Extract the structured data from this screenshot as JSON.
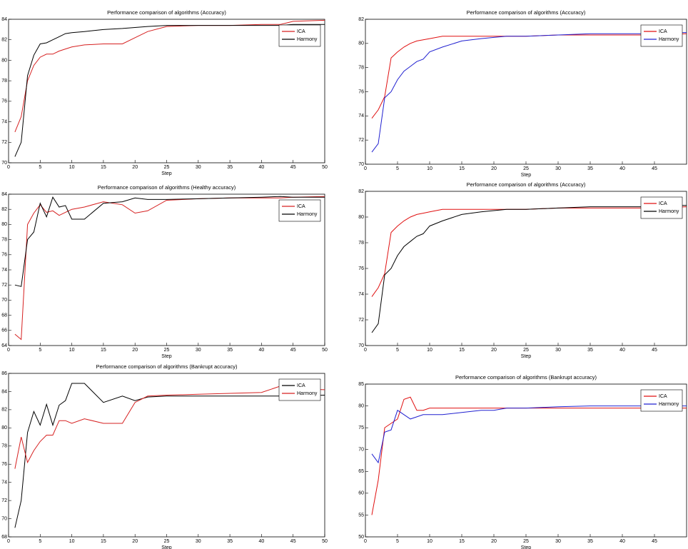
{
  "chart_data": [
    {
      "type": "line",
      "title": "Performance comparison of algorithms (Accuracy)",
      "xlabel": "Step",
      "x": [
        1,
        2,
        3,
        4,
        5,
        6,
        7,
        8,
        9,
        10,
        12,
        15,
        18,
        20,
        22,
        25,
        30,
        35,
        40,
        43,
        45,
        50
      ],
      "series": [
        {
          "name": "ICA",
          "color": "#d62020",
          "values": [
            73,
            74.5,
            78,
            79.5,
            80.3,
            80.6,
            80.6,
            80.9,
            81.1,
            81.3,
            81.5,
            81.6,
            81.6,
            82.2,
            82.8,
            83.3,
            83.4,
            83.4,
            83.5,
            83.5,
            83.8,
            83.9
          ]
        },
        {
          "name": "Harmony",
          "color": "#000000",
          "values": [
            70.6,
            72,
            78.5,
            80.5,
            81.6,
            81.7,
            82,
            82.3,
            82.6,
            82.7,
            82.8,
            83,
            83.1,
            83.2,
            83.3,
            83.4,
            83.4,
            83.4,
            83.4,
            83.4,
            83.5,
            83.5
          ]
        }
      ],
      "xlim": [
        0,
        50
      ],
      "xticks": [
        0,
        5,
        10,
        15,
        20,
        25,
        30,
        35,
        40,
        45,
        50
      ],
      "ylim": [
        70,
        84
      ],
      "yticks": [
        70,
        72,
        74,
        76,
        78,
        80,
        82,
        84
      ],
      "legend": "upper right",
      "grid": false
    },
    {
      "type": "line",
      "title": "Performance comparison of algorithms (Accuracy)",
      "xlabel": "Step",
      "x": [
        1,
        2,
        3,
        4,
        5,
        6,
        7,
        8,
        9,
        10,
        12,
        15,
        18,
        20,
        22,
        25,
        30,
        35,
        40,
        43,
        45,
        50
      ],
      "series": [
        {
          "name": "ICA",
          "color": "#e01010",
          "values": [
            73.8,
            74.5,
            75.6,
            78.8,
            79.3,
            79.7,
            80,
            80.2,
            80.3,
            80.4,
            80.6,
            80.6,
            80.6,
            80.6,
            80.6,
            80.6,
            80.7,
            80.7,
            80.7,
            80.7,
            80.7,
            80.8
          ]
        },
        {
          "name": "Harmony",
          "color": "#2020d0",
          "values": [
            71,
            71.7,
            75.5,
            76,
            77,
            77.7,
            78.1,
            78.5,
            78.7,
            79.3,
            79.7,
            80.2,
            80.4,
            80.5,
            80.6,
            80.6,
            80.7,
            80.8,
            80.8,
            80.8,
            80.9,
            80.9
          ]
        }
      ],
      "xlim": [
        0,
        50
      ],
      "xticks": [
        0,
        5,
        10,
        15,
        20,
        25,
        30,
        35,
        40,
        45
      ],
      "ylim": [
        70,
        82
      ],
      "yticks": [
        70,
        72,
        74,
        76,
        78,
        80,
        82
      ],
      "legend": "upper right",
      "grid": false
    },
    {
      "type": "line",
      "title": "Performance comparison of algorithms (Healthy accuracy)",
      "xlabel": "Step",
      "x": [
        1,
        2,
        3,
        4,
        5,
        6,
        7,
        8,
        9,
        10,
        12,
        15,
        18,
        20,
        22,
        25,
        30,
        35,
        40,
        43,
        45,
        50
      ],
      "series": [
        {
          "name": "ICA",
          "color": "#d62020",
          "values": [
            65.5,
            64.8,
            80,
            81.5,
            82.6,
            81.6,
            81.8,
            81.2,
            81.6,
            82,
            82.3,
            83,
            82.6,
            81.5,
            81.8,
            83.2,
            83.4,
            83.5,
            83.5,
            83.5,
            83.6,
            83.7
          ]
        },
        {
          "name": "Harmony",
          "color": "#000000",
          "values": [
            72,
            71.8,
            78,
            79,
            82.8,
            81,
            83.6,
            82.3,
            82.5,
            80.7,
            80.7,
            82.8,
            83,
            83.5,
            83.3,
            83.3,
            83.4,
            83.5,
            83.6,
            83.7,
            83.6,
            83.6
          ]
        }
      ],
      "xlim": [
        0,
        50
      ],
      "xticks": [
        0,
        5,
        10,
        15,
        20,
        25,
        30,
        35,
        40,
        45,
        50
      ],
      "ylim": [
        64,
        84
      ],
      "yticks": [
        64,
        66,
        68,
        70,
        72,
        74,
        76,
        78,
        80,
        82,
        84
      ],
      "legend": "upper right",
      "grid": false
    },
    {
      "type": "line",
      "title": "Performance comparison of algorithms (Accuracy)",
      "xlabel": "Step",
      "x": [
        1,
        2,
        3,
        4,
        5,
        6,
        7,
        8,
        9,
        10,
        12,
        15,
        18,
        20,
        22,
        25,
        30,
        35,
        40,
        43,
        45,
        50
      ],
      "series": [
        {
          "name": "ICA",
          "color": "#e01010",
          "values": [
            73.8,
            74.5,
            75.6,
            78.8,
            79.3,
            79.7,
            80,
            80.2,
            80.3,
            80.4,
            80.6,
            80.6,
            80.6,
            80.6,
            80.6,
            80.6,
            80.7,
            80.7,
            80.7,
            80.7,
            80.7,
            80.8
          ]
        },
        {
          "name": "Harmony",
          "color": "#000000",
          "values": [
            71,
            71.7,
            75.5,
            76,
            77,
            77.7,
            78.1,
            78.5,
            78.7,
            79.3,
            79.7,
            80.2,
            80.4,
            80.5,
            80.6,
            80.6,
            80.7,
            80.8,
            80.8,
            80.8,
            80.9,
            80.9
          ]
        }
      ],
      "xlim": [
        0,
        50
      ],
      "xticks": [
        0,
        5,
        10,
        15,
        20,
        25,
        30,
        35,
        40,
        45
      ],
      "ylim": [
        70,
        82
      ],
      "yticks": [
        70,
        72,
        74,
        76,
        78,
        80,
        82
      ],
      "legend": "upper right",
      "grid": false
    },
    {
      "type": "line",
      "title": "Performance comparison of algorithms (Bankrupt accuracy)",
      "xlabel": "Step",
      "x": [
        1,
        2,
        3,
        4,
        5,
        6,
        7,
        8,
        9,
        10,
        12,
        15,
        18,
        20,
        22,
        25,
        30,
        35,
        40,
        43,
        45,
        50
      ],
      "series": [
        {
          "name": "ICA",
          "color": "#000000",
          "values": [
            69,
            72,
            79.5,
            81.8,
            80.3,
            82.6,
            80.3,
            82.5,
            83,
            84.9,
            84.9,
            82.8,
            83.5,
            83,
            83.4,
            83.5,
            83.5,
            83.5,
            83.5,
            83.5,
            83.5,
            83.6
          ]
        },
        {
          "name": "Harmony",
          "color": "#d62020",
          "values": [
            75.5,
            79,
            76.2,
            77.5,
            78.5,
            79.2,
            79.2,
            80.8,
            80.8,
            80.5,
            81,
            80.5,
            80.5,
            82.8,
            83.5,
            83.6,
            83.7,
            83.8,
            83.9,
            84.6,
            84.3,
            84.2
          ]
        }
      ],
      "xlim": [
        0,
        50
      ],
      "xticks": [
        0,
        5,
        10,
        15,
        20,
        25,
        30,
        35,
        40,
        45,
        50
      ],
      "ylim": [
        68,
        86
      ],
      "yticks": [
        68,
        70,
        72,
        74,
        76,
        78,
        80,
        82,
        84,
        86
      ],
      "legend": "upper right",
      "grid": false
    },
    {
      "type": "line",
      "title": "Performance comparison of algorithms (Bankrupt accuracy)",
      "xlabel": "Step",
      "x": [
        1,
        2,
        3,
        4,
        5,
        6,
        7,
        8,
        9,
        10,
        12,
        15,
        18,
        20,
        22,
        25,
        30,
        35,
        40,
        43,
        45,
        50
      ],
      "series": [
        {
          "name": "ICA",
          "color": "#e01010",
          "values": [
            55,
            63,
            75,
            76,
            77,
            81.5,
            82,
            79,
            79,
            79.5,
            79.5,
            79.5,
            79.5,
            79.5,
            79.5,
            79.5,
            79.5,
            79.5,
            79.5,
            79.5,
            79.5,
            79.5
          ]
        },
        {
          "name": "Harmony",
          "color": "#2020d0",
          "values": [
            69,
            67,
            74,
            74.5,
            79,
            78,
            77,
            77.5,
            78,
            78,
            78,
            78.5,
            79,
            79,
            79.5,
            79.5,
            79.8,
            80,
            80,
            80,
            80,
            80
          ]
        }
      ],
      "xlim": [
        0,
        50
      ],
      "xticks": [
        0,
        5,
        10,
        15,
        20,
        25,
        30,
        35,
        40,
        45
      ],
      "ylim": [
        50,
        85
      ],
      "yticks": [
        50,
        55,
        60,
        65,
        70,
        75,
        80,
        85
      ],
      "legend": "upper right",
      "grid": false
    }
  ]
}
